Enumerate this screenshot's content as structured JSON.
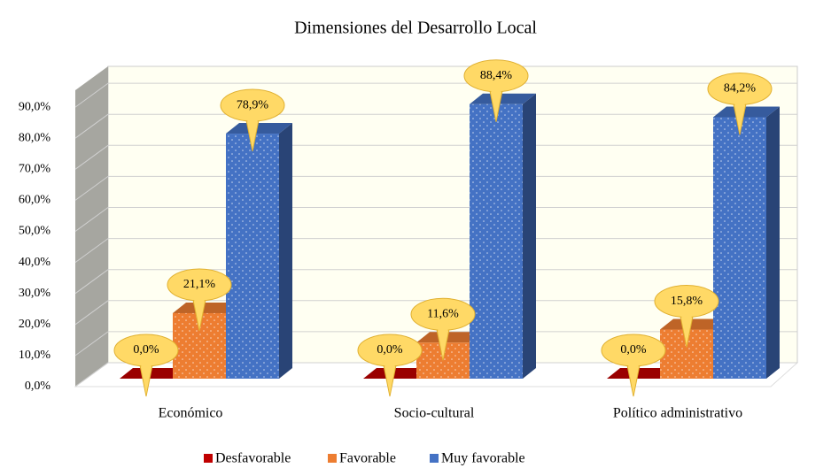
{
  "chart_data": {
    "type": "bar",
    "title": "Dimensiones del Desarrollo Local",
    "categories": [
      "Económico",
      "Socio-cultural",
      "Político administrativo"
    ],
    "series": [
      {
        "name": "Desfavorable",
        "color": "#c00000",
        "values": [
          0,
          0,
          0
        ],
        "value_labels": [
          "0,0%",
          "0,0%",
          "0,0%"
        ]
      },
      {
        "name": "Favorable",
        "color": "#ed7d31",
        "values": [
          21.1,
          11.6,
          15.8
        ],
        "value_labels": [
          "21,1%",
          "11,6%",
          "15,8%"
        ]
      },
      {
        "name": "Muy favorable",
        "color": "#4472c4",
        "values": [
          78.9,
          88.4,
          84.2
        ],
        "value_labels": [
          "78,9%",
          "88,4%",
          "84,2%"
        ]
      }
    ],
    "ylim": [
      0,
      100
    ],
    "yticks": [
      {
        "value": 0,
        "label": "0,0%"
      },
      {
        "value": 10,
        "label": "10,0%"
      },
      {
        "value": 20,
        "label": "20,0%"
      },
      {
        "value": 30,
        "label": "30,0%"
      },
      {
        "value": 40,
        "label": "40,0%"
      },
      {
        "value": 50,
        "label": "50,0%"
      },
      {
        "value": 60,
        "label": "60,0%"
      },
      {
        "value": 70,
        "label": "70,0%"
      },
      {
        "value": 80,
        "label": "80,0%"
      },
      {
        "value": 90,
        "label": "90,0%"
      }
    ],
    "grid": true,
    "legend": "bottom"
  }
}
